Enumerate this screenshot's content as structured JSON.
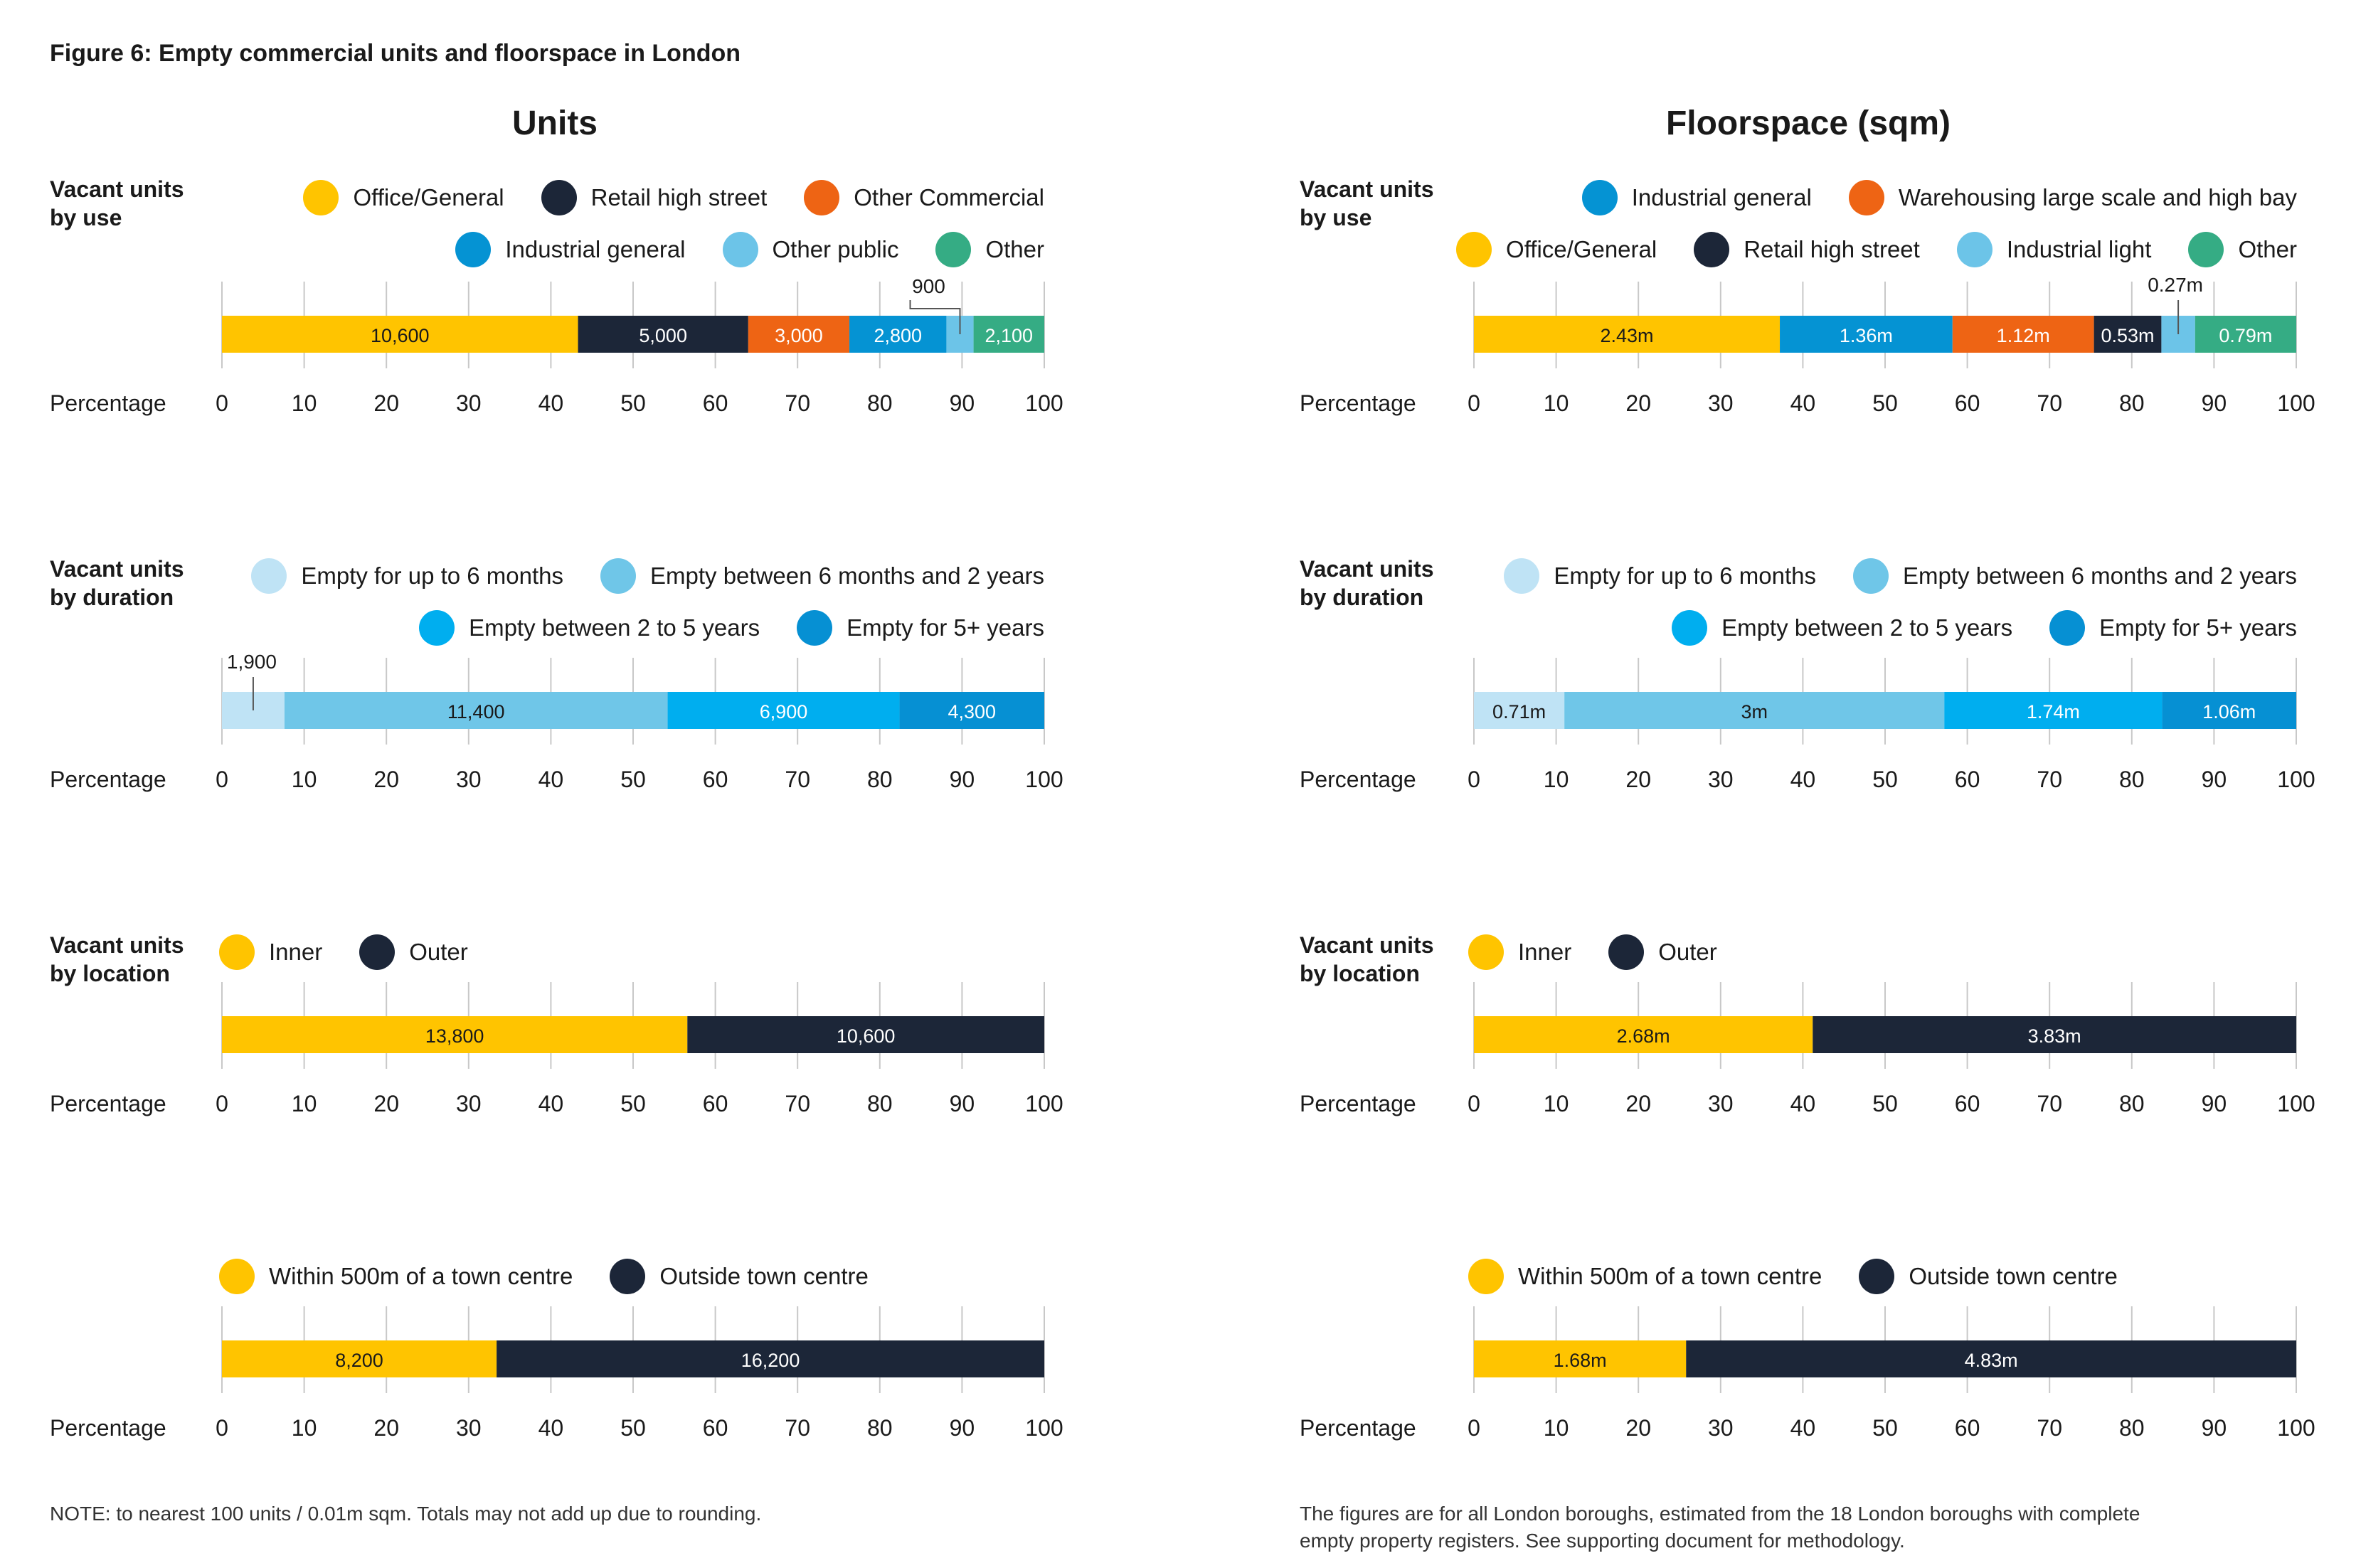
{
  "figure_title": "Figure 6: Empty commercial units and floorspace in London",
  "column_titles": {
    "units": "Units",
    "floorspace": "Floorspace (sqm)"
  },
  "axis_label": "Percentage",
  "notes": {
    "left": "NOTE: to nearest 100 units / 0.01m sqm. Totals may not add up due to rounding.",
    "right_line1": "The figures are for all London boroughs, estimated from the 18 London boroughs with complete",
    "right_line2": "empty property registers. See supporting document for methodology."
  },
  "colors": {
    "yellow": "#FFC400",
    "navy": "#1C2638",
    "orange": "#EE6414",
    "blue": "#0593D3",
    "lightblue": "#6CC4E8",
    "green": "#35AC84",
    "paleblue": "#BFE3F5",
    "midblue": "#6FC6E8",
    "brightblue": "#00AEEF",
    "deepblue": "#0690D3",
    "grid": "#c8c8c8"
  },
  "panels": {
    "units_use": {
      "label": "Vacant units by use",
      "legend_rows": [
        [
          "Office/General",
          "Retail high street",
          "Other Commercial"
        ],
        [
          "Industrial general",
          "Other public",
          "Other"
        ]
      ]
    },
    "units_duration": {
      "label": "Vacant units by duration",
      "legend_rows": [
        [
          "Empty for up to 6 months",
          "Empty between 6 months and 2 years"
        ],
        [
          "Empty between 2 to 5 years",
          "Empty for 5+ years"
        ]
      ]
    },
    "units_location": {
      "label": "Vacant units by location",
      "legend_rows": [
        [
          "Inner",
          "Outer"
        ]
      ]
    },
    "units_towncentre": {
      "label": "",
      "legend_rows": [
        [
          "Within 500m of a town centre",
          "Outside town centre"
        ]
      ]
    },
    "floor_use": {
      "label": "Vacant units by use",
      "legend_rows": [
        [
          "Industrial general",
          "Warehousing large scale and high bay"
        ],
        [
          "Office/General",
          "Retail high street",
          "Industrial light",
          "Other"
        ]
      ]
    },
    "floor_duration": {
      "label": "Vacant units by duration",
      "legend_rows": [
        [
          "Empty for up to 6 months",
          "Empty between 6 months and 2 years"
        ],
        [
          "Empty between 2 to 5 years",
          "Empty for 5+ years"
        ]
      ]
    },
    "floor_location": {
      "label": "Vacant units by location",
      "legend_rows": [
        [
          "Inner",
          "Outer"
        ]
      ]
    },
    "floor_towncentre": {
      "label": "",
      "legend_rows": [
        [
          "Within 500m of a town centre",
          "Outside town centre"
        ]
      ]
    }
  },
  "chart_data": [
    {
      "id": "units_use",
      "type": "bar",
      "orientation": "horizontal",
      "stacked": true,
      "title": "Vacant units by use",
      "xlabel": "Percentage",
      "xlim": [
        0,
        100
      ],
      "ticks": [
        "0",
        "10",
        "20",
        "30",
        "40",
        "50",
        "60",
        "70",
        "80",
        "90",
        "100"
      ],
      "series": [
        {
          "name": "Office/General",
          "percent": 43.3,
          "value": 10600,
          "label": "10,600",
          "color": "yellow",
          "text_color": "#1a1a1a"
        },
        {
          "name": "Retail high street",
          "percent": 20.7,
          "value": 5000,
          "label": "5,000",
          "color": "navy",
          "text_color": "#ffffff"
        },
        {
          "name": "Other Commercial",
          "percent": 12.3,
          "value": 3000,
          "label": "3,000",
          "color": "orange",
          "text_color": "#ffffff"
        },
        {
          "name": "Industrial general",
          "percent": 11.8,
          "value": 2800,
          "label": "2,800",
          "color": "blue",
          "text_color": "#ffffff"
        },
        {
          "name": "Other public",
          "percent": 3.3,
          "value": 900,
          "label": "900",
          "color": "lightblue",
          "text_color": "#1a1a1a",
          "callout": true
        },
        {
          "name": "Other",
          "percent": 8.6,
          "value": 2100,
          "label": "2,100",
          "color": "green",
          "text_color": "#ffffff"
        }
      ]
    },
    {
      "id": "units_duration",
      "type": "bar",
      "orientation": "horizontal",
      "stacked": true,
      "title": "Vacant units by duration",
      "xlabel": "Percentage",
      "xlim": [
        0,
        100
      ],
      "ticks": [
        "0",
        "10",
        "20",
        "30",
        "40",
        "50",
        "60",
        "70",
        "80",
        "90",
        "100"
      ],
      "series": [
        {
          "name": "Empty for up to 6 months",
          "percent": 7.6,
          "value": 1900,
          "label": "1,900",
          "color": "paleblue",
          "text_color": "#1a1a1a",
          "callout": true
        },
        {
          "name": "Empty between 6 months and 2 years",
          "percent": 46.6,
          "value": 11400,
          "label": "11,400",
          "color": "midblue",
          "text_color": "#1a1a1a"
        },
        {
          "name": "Empty between 2 to 5 years",
          "percent": 28.2,
          "value": 6900,
          "label": "6,900",
          "color": "brightblue",
          "text_color": "#ffffff"
        },
        {
          "name": "Empty for 5+ years",
          "percent": 17.6,
          "value": 4300,
          "label": "4,300",
          "color": "deepblue",
          "text_color": "#ffffff"
        }
      ]
    },
    {
      "id": "units_location",
      "type": "bar",
      "orientation": "horizontal",
      "stacked": true,
      "title": "Vacant units by location",
      "xlabel": "Percentage",
      "xlim": [
        0,
        100
      ],
      "ticks": [
        "0",
        "10",
        "20",
        "30",
        "40",
        "50",
        "60",
        "70",
        "80",
        "90",
        "100"
      ],
      "series": [
        {
          "name": "Inner",
          "percent": 56.6,
          "value": 13800,
          "label": "13,800",
          "color": "yellow",
          "text_color": "#1a1a1a"
        },
        {
          "name": "Outer",
          "percent": 43.4,
          "value": 10600,
          "label": "10,600",
          "color": "navy",
          "text_color": "#ffffff"
        }
      ]
    },
    {
      "id": "units_towncentre",
      "type": "bar",
      "orientation": "horizontal",
      "stacked": true,
      "title": "",
      "xlabel": "Percentage",
      "xlim": [
        0,
        100
      ],
      "ticks": [
        "0",
        "10",
        "20",
        "30",
        "40",
        "50",
        "60",
        "70",
        "80",
        "90",
        "100"
      ],
      "series": [
        {
          "name": "Within 500m of a town centre",
          "percent": 33.4,
          "value": 8200,
          "label": "8,200",
          "color": "yellow",
          "text_color": "#1a1a1a"
        },
        {
          "name": "Outside town centre",
          "percent": 66.6,
          "value": 16200,
          "label": "16,200",
          "color": "navy",
          "text_color": "#ffffff"
        }
      ]
    },
    {
      "id": "floor_use",
      "type": "bar",
      "orientation": "horizontal",
      "stacked": true,
      "title": "Vacant units by use",
      "xlabel": "Percentage",
      "xlim": [
        0,
        100
      ],
      "ticks": [
        "0",
        "10",
        "20",
        "30",
        "40",
        "50",
        "60",
        "70",
        "80",
        "90",
        "100"
      ],
      "series": [
        {
          "name": "Office/General",
          "percent": 37.2,
          "value": 2.43,
          "label": "2.43m",
          "color": "yellow",
          "text_color": "#1a1a1a"
        },
        {
          "name": "Industrial general",
          "percent": 21.0,
          "value": 1.36,
          "label": "1.36m",
          "color": "blue",
          "text_color": "#ffffff"
        },
        {
          "name": "Warehousing large scale and high bay",
          "percent": 17.2,
          "value": 1.12,
          "label": "1.12m",
          "color": "orange",
          "text_color": "#ffffff"
        },
        {
          "name": "Retail high street",
          "percent": 8.2,
          "value": 0.53,
          "label": "0.53m",
          "color": "navy",
          "text_color": "#ffffff"
        },
        {
          "name": "Industrial light",
          "percent": 4.1,
          "value": 0.27,
          "label": "0.27m",
          "color": "lightblue",
          "text_color": "#1a1a1a",
          "callout": true
        },
        {
          "name": "Other",
          "percent": 12.3,
          "value": 0.79,
          "label": "0.79m",
          "color": "green",
          "text_color": "#ffffff"
        }
      ]
    },
    {
      "id": "floor_duration",
      "type": "bar",
      "orientation": "horizontal",
      "stacked": true,
      "title": "Vacant units by duration",
      "xlabel": "Percentage",
      "xlim": [
        0,
        100
      ],
      "ticks": [
        "0",
        "10",
        "20",
        "30",
        "40",
        "50",
        "60",
        "70",
        "80",
        "90",
        "100"
      ],
      "series": [
        {
          "name": "Empty for up to 6 months",
          "percent": 11.0,
          "value": 0.71,
          "label": "0.71m",
          "color": "paleblue",
          "text_color": "#1a1a1a"
        },
        {
          "name": "Empty between 6 months and 2 years",
          "percent": 46.2,
          "value": 3.0,
          "label": "3m",
          "color": "midblue",
          "text_color": "#1a1a1a"
        },
        {
          "name": "Empty between 2 to 5 years",
          "percent": 26.5,
          "value": 1.74,
          "label": "1.74m",
          "color": "brightblue",
          "text_color": "#ffffff"
        },
        {
          "name": "Empty for 5+ years",
          "percent": 16.3,
          "value": 1.06,
          "label": "1.06m",
          "color": "deepblue",
          "text_color": "#ffffff"
        }
      ]
    },
    {
      "id": "floor_location",
      "type": "bar",
      "orientation": "horizontal",
      "stacked": true,
      "title": "Vacant units by location",
      "xlabel": "Percentage",
      "xlim": [
        0,
        100
      ],
      "ticks": [
        "0",
        "10",
        "20",
        "30",
        "40",
        "50",
        "60",
        "70",
        "80",
        "90",
        "100"
      ],
      "series": [
        {
          "name": "Inner",
          "percent": 41.2,
          "value": 2.68,
          "label": "2.68m",
          "color": "yellow",
          "text_color": "#1a1a1a"
        },
        {
          "name": "Outer",
          "percent": 58.8,
          "value": 3.83,
          "label": "3.83m",
          "color": "navy",
          "text_color": "#ffffff"
        }
      ]
    },
    {
      "id": "floor_towncentre",
      "type": "bar",
      "orientation": "horizontal",
      "stacked": true,
      "title": "",
      "xlabel": "Percentage",
      "xlim": [
        0,
        100
      ],
      "ticks": [
        "0",
        "10",
        "20",
        "30",
        "40",
        "50",
        "60",
        "70",
        "80",
        "90",
        "100"
      ],
      "series": [
        {
          "name": "Within 500m of a town centre",
          "percent": 25.8,
          "value": 1.68,
          "label": "1.68m",
          "color": "yellow",
          "text_color": "#1a1a1a"
        },
        {
          "name": "Outside town centre",
          "percent": 74.2,
          "value": 4.83,
          "label": "4.83m",
          "color": "navy",
          "text_color": "#ffffff"
        }
      ]
    }
  ]
}
